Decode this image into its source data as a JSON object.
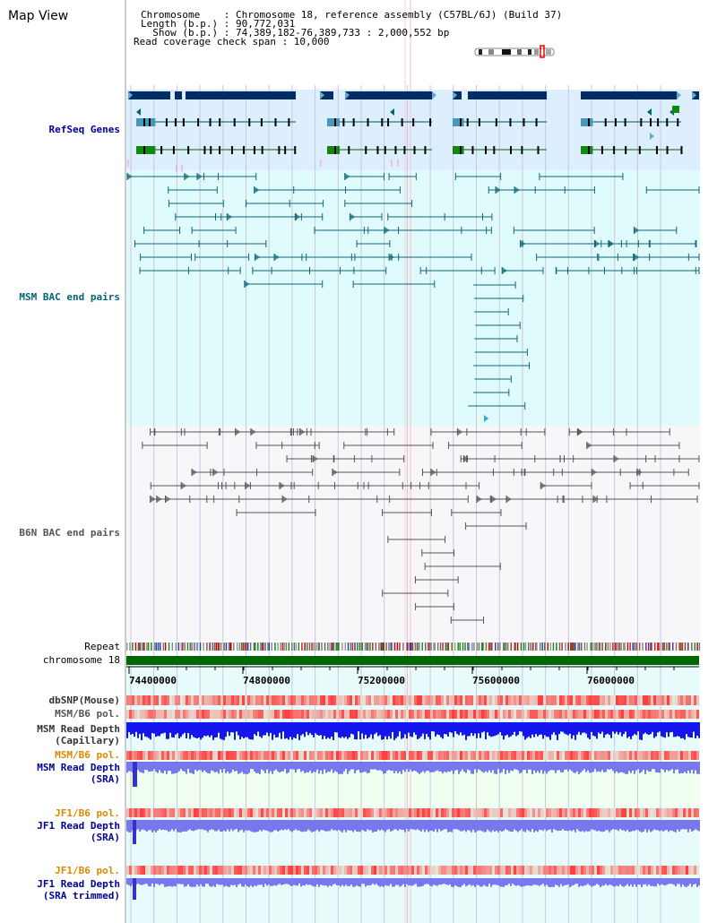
{
  "view_title": "Map View",
  "info": {
    "chromosome_line": "Chromosome    : Chromosome 18, reference assembly (C57BL/6J) (Build 37)",
    "length_line": "Length (b.p.) : 90,772,031",
    "show_line": "  Show (b.p.) : 74,389,182-76,389,733 : 2,000,552 bp",
    "coverage_line": "Read coverage check span : 10,000"
  },
  "tracks": {
    "refseq": "RefSeq Genes",
    "msm_bac": "MSM BAC end pairs",
    "b6n_bac": "B6N BAC end pairs",
    "repeat": "Repeat",
    "chromosome": "chromosome 18",
    "dbsnp": "dbSNP(Mouse)",
    "msm_b6_pol_1": "MSM/B6 pol.",
    "msm_depth_cap_1": "MSM Read Depth",
    "msm_depth_cap_2": "(Capillary)",
    "msm_b6_pol_2": "MSM/B6 pol.",
    "msm_depth_sra_1": "MSM Read Depth",
    "msm_depth_sra_2": "(SRA)",
    "jf1_b6_pol_1": "JF1/B6 pol.",
    "jf1_depth_sra_1": "JF1 Read Depth",
    "jf1_depth_sra_2": "(SRA)",
    "jf1_b6_pol_2": "JF1/B6 pol.",
    "jf1_depth_trim_1": "JF1 Read Depth",
    "jf1_depth_trim_2": "(SRA trimmed)"
  },
  "axis_ticks": [
    "74400000",
    "74800000",
    "75200000",
    "75600000",
    "76000000"
  ],
  "colors": {
    "refseq_label": "#000099",
    "msm_bac_label": "#006677",
    "b6n_bac_label": "#555555",
    "pol_label": "#dd8800",
    "depth_label": "#000099",
    "chromosome_bar": "#006600",
    "capillary_depth": "#1515ee",
    "sra_depth": "#7777ee"
  }
}
